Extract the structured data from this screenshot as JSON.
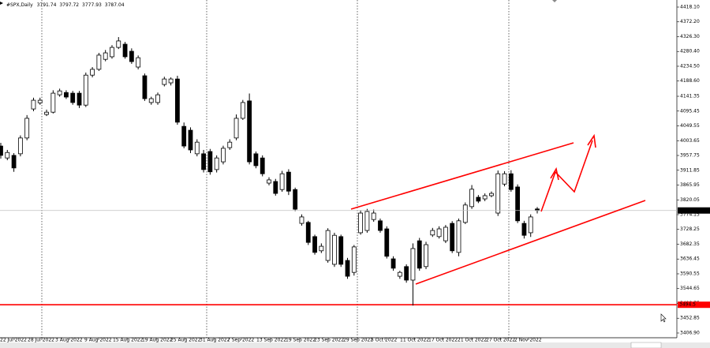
{
  "chart_data": {
    "type": "candlestick",
    "title": "#SPX,Daily",
    "open": [
      3987,
      3950,
      3958,
      3963,
      4012,
      4102,
      4121,
      4085,
      4092,
      4146,
      4153,
      4151,
      4151,
      4114,
      4207,
      4225,
      4256,
      4264,
      4293,
      4303,
      4281,
      4232,
      4205,
      4122,
      4122,
      4178,
      4183,
      4195,
      4048,
      4036,
      3963,
      3963,
      3970,
      3914,
      3938,
      3982,
      4012,
      4073,
      4127,
      3963,
      3950,
      3872,
      3877,
      3852,
      3906,
      3852,
      3747,
      3750,
      3706,
      3662,
      3632,
      3620,
      3706,
      3632,
      3595,
      3718,
      3725,
      3759,
      3755,
      3730,
      3637,
      3583,
      3613,
      3571,
      3693,
      3613,
      3711,
      3706,
      3693,
      3747,
      3657,
      3750,
      3799,
      3828,
      3823,
      3833,
      3779,
      3869,
      3901,
      3860,
      3747,
      3718,
      3791.74
    ],
    "high": [
      3997,
      3975,
      3965,
      4020,
      4083,
      4137,
      4137,
      4100,
      4160,
      4165,
      4160,
      4158,
      4158,
      4215,
      4232,
      4276,
      4285,
      4300,
      4325,
      4310,
      4290,
      4268,
      4212,
      4140,
      4153,
      4202,
      4200,
      4205,
      4060,
      4045,
      4008,
      3975,
      3978,
      3958,
      3988,
      4008,
      4085,
      4130,
      4150,
      3970,
      3958,
      3890,
      3885,
      3910,
      3915,
      3858,
      3775,
      3755,
      3712,
      3685,
      3732,
      3718,
      3712,
      3640,
      3680,
      3788,
      3792,
      3790,
      3762,
      3738,
      3645,
      3600,
      3620,
      3685,
      3702,
      3690,
      3733,
      3738,
      3742,
      3754,
      3762,
      3812,
      3866,
      3835,
      3840,
      3846,
      3911,
      3909,
      3912,
      3868,
      3755,
      3775,
      3797.72
    ],
    "low": [
      3948,
      3943,
      3907,
      3955,
      4005,
      4095,
      4115,
      4080,
      4088,
      4140,
      4133,
      4115,
      4105,
      4108,
      4200,
      4220,
      4250,
      4258,
      4288,
      4258,
      4242,
      4225,
      4127,
      4115,
      4115,
      4172,
      4175,
      4053,
      3980,
      3965,
      3955,
      3905,
      3898,
      3905,
      3930,
      3975,
      4005,
      4068,
      3930,
      3918,
      3893,
      3865,
      3833,
      3845,
      3835,
      3785,
      3740,
      3680,
      3650,
      3655,
      3625,
      3612,
      3612,
      3575,
      3585,
      3712,
      3718,
      3752,
      3718,
      3638,
      3600,
      3575,
      3563,
      3492,
      3600,
      3605,
      3705,
      3700,
      3686,
      3655,
      3645,
      3745,
      3792,
      3810,
      3816,
      3828,
      3770,
      3862,
      3845,
      3748,
      3700,
      3705,
      3777.93
    ],
    "close": [
      3958,
      3967,
      3919,
      4012,
      4073,
      4129,
      4129,
      4092,
      4151,
      4158,
      4139,
      4122,
      4114,
      4207,
      4225,
      4269,
      4276,
      4293,
      4313,
      4264,
      4249,
      4261,
      4134,
      4134,
      4146,
      4195,
      4195,
      4061,
      3987,
      3975,
      3999,
      3914,
      3907,
      3950,
      3980,
      3999,
      4073,
      4122,
      3938,
      3926,
      3901,
      3882,
      3840,
      3901,
      3847,
      3791,
      3767,
      3688,
      3657,
      3676,
      3725,
      3710,
      3620,
      3583,
      3674,
      3779,
      3784,
      3779,
      3725,
      3645,
      3608,
      3595,
      3571,
      3669,
      3608,
      3681,
      3725,
      3730,
      3735,
      3662,
      3755,
      3804,
      3853,
      3816,
      3833,
      3840,
      3901,
      3901,
      3852,
      3755,
      3710,
      3767,
      3787.04
    ],
    "x_labels": [
      "22 Jul 2022",
      "28 Jul 2022",
      "3 Aug 2022",
      "9 Aug 2022",
      "15 Aug 2022",
      "19 Aug 2022",
      "25 Aug 2022",
      "31 Aug 2022",
      "7 Sep 2022",
      "13 Sep 2022",
      "19 Sep 2022",
      "23 Sep 2022",
      "29 Sep 2022",
      "5 Oct 2022",
      "11 Oct 2022",
      "17 Oct 2022",
      "21 Oct 2022",
      "27 Oct 2022",
      "2 Nov 2022"
    ],
    "ylim": [
      3392.2,
      4440.1
    ],
    "yticks": [
      {
        "value": 4418.1,
        "label": "4418.10"
      },
      {
        "value": 4372.2,
        "label": "4372.20"
      },
      {
        "value": 4326.3,
        "label": "4326.30"
      },
      {
        "value": 4280.4,
        "label": "4280.40"
      },
      {
        "value": 4234.5,
        "label": "4234.50"
      },
      {
        "value": 4188.6,
        "label": "4188.60"
      },
      {
        "value": 4141.35,
        "label": "4141.35"
      },
      {
        "value": 4095.45,
        "label": "4095.45"
      },
      {
        "value": 4049.55,
        "label": "4049.55"
      },
      {
        "value": 4003.65,
        "label": "4003.65"
      },
      {
        "value": 3957.75,
        "label": "3957.75"
      },
      {
        "value": 3911.85,
        "label": "3911.85"
      },
      {
        "value": 3865.95,
        "label": "3865.95"
      },
      {
        "value": 3820.05,
        "label": "3820.05"
      },
      {
        "value": 3774.15,
        "label": "3774.15"
      },
      {
        "value": 3728.25,
        "label": "3728.25"
      },
      {
        "value": 3682.35,
        "label": "3682.35"
      },
      {
        "value": 3636.45,
        "label": "3636.45"
      },
      {
        "value": 3590.55,
        "label": "3590.55"
      },
      {
        "value": 3544.65,
        "label": "3544.65"
      },
      {
        "value": 3498.75,
        "label": "3498.75"
      },
      {
        "value": 3452.85,
        "label": "3452.85"
      },
      {
        "value": 3406.9,
        "label": "3406.90"
      }
    ],
    "support_level": {
      "value": 3494.5,
      "label": "3494.5"
    },
    "up_color": "#ffffff",
    "down_color": "#000000",
    "annotation_color": "#ff0000"
  }
}
